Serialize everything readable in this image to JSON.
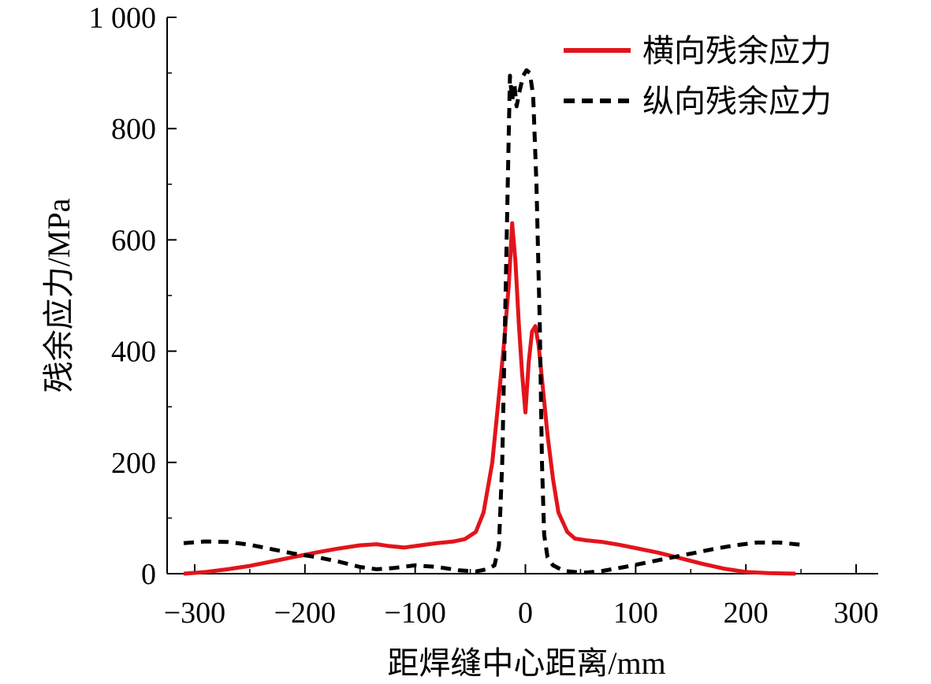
{
  "chart_data": {
    "type": "line",
    "title": "",
    "xlabel": "距焊缝中心距离/mm",
    "ylabel": "残余应力/MPa",
    "xlim": [
      -325,
      320
    ],
    "ylim": [
      0,
      1000
    ],
    "x_ticks": [
      -300,
      -200,
      -100,
      0,
      100,
      200,
      300
    ],
    "x_tick_labels": [
      "−300",
      "−200",
      "−100",
      "0",
      "100",
      "200",
      "300"
    ],
    "y_ticks": [
      0,
      200,
      400,
      600,
      800,
      1000
    ],
    "y_tick_labels": [
      "0",
      "200",
      "400",
      "600",
      "800",
      "1 000"
    ],
    "grid": false,
    "legend_position": "top-right",
    "series": [
      {
        "name": "横向残余应力",
        "color": "#e3141b",
        "style": "solid",
        "points": [
          [
            -310,
            0
          ],
          [
            -290,
            3
          ],
          [
            -270,
            8
          ],
          [
            -250,
            14
          ],
          [
            -230,
            22
          ],
          [
            -210,
            30
          ],
          [
            -190,
            38
          ],
          [
            -170,
            45
          ],
          [
            -150,
            51
          ],
          [
            -135,
            53
          ],
          [
            -125,
            50
          ],
          [
            -110,
            47
          ],
          [
            -95,
            51
          ],
          [
            -80,
            55
          ],
          [
            -65,
            58
          ],
          [
            -55,
            62
          ],
          [
            -45,
            75
          ],
          [
            -38,
            110
          ],
          [
            -30,
            200
          ],
          [
            -25,
            300
          ],
          [
            -20,
            400
          ],
          [
            -15,
            520
          ],
          [
            -12,
            630
          ],
          [
            -9,
            560
          ],
          [
            -6,
            450
          ],
          [
            -3,
            360
          ],
          [
            0,
            290
          ],
          [
            3,
            380
          ],
          [
            6,
            435
          ],
          [
            9,
            445
          ],
          [
            12,
            410
          ],
          [
            16,
            330
          ],
          [
            20,
            250
          ],
          [
            25,
            170
          ],
          [
            30,
            110
          ],
          [
            38,
            75
          ],
          [
            45,
            63
          ],
          [
            55,
            60
          ],
          [
            70,
            57
          ],
          [
            85,
            52
          ],
          [
            100,
            46
          ],
          [
            120,
            38
          ],
          [
            140,
            28
          ],
          [
            160,
            18
          ],
          [
            180,
            9
          ],
          [
            200,
            3
          ],
          [
            220,
            1
          ],
          [
            245,
            0
          ]
        ]
      },
      {
        "name": "纵向残余应力",
        "color": "#000000",
        "style": "dashed",
        "points": [
          [
            -310,
            55
          ],
          [
            -290,
            58
          ],
          [
            -270,
            57
          ],
          [
            -250,
            52
          ],
          [
            -230,
            44
          ],
          [
            -210,
            36
          ],
          [
            -190,
            30
          ],
          [
            -170,
            22
          ],
          [
            -150,
            12
          ],
          [
            -135,
            8
          ],
          [
            -120,
            10
          ],
          [
            -100,
            15
          ],
          [
            -80,
            12
          ],
          [
            -60,
            6
          ],
          [
            -45,
            4
          ],
          [
            -35,
            8
          ],
          [
            -28,
            15
          ],
          [
            -24,
            50
          ],
          [
            -21,
            200
          ],
          [
            -19,
            400
          ],
          [
            -17,
            600
          ],
          [
            -15,
            800
          ],
          [
            -14,
            895
          ],
          [
            -12,
            850
          ],
          [
            -10,
            880
          ],
          [
            -8,
            840
          ],
          [
            -5,
            870
          ],
          [
            -2,
            895
          ],
          [
            1,
            905
          ],
          [
            4,
            900
          ],
          [
            7,
            860
          ],
          [
            10,
            700
          ],
          [
            13,
            450
          ],
          [
            15,
            200
          ],
          [
            17,
            70
          ],
          [
            20,
            30
          ],
          [
            25,
            15
          ],
          [
            35,
            5
          ],
          [
            45,
            3
          ],
          [
            55,
            2
          ],
          [
            70,
            5
          ],
          [
            90,
            12
          ],
          [
            110,
            20
          ],
          [
            130,
            28
          ],
          [
            150,
            36
          ],
          [
            170,
            44
          ],
          [
            190,
            51
          ],
          [
            210,
            56
          ],
          [
            230,
            56
          ],
          [
            250,
            52
          ]
        ]
      }
    ]
  },
  "legend": {
    "items": [
      {
        "label": "横向残余应力"
      },
      {
        "label": "纵向残余应力"
      }
    ]
  }
}
